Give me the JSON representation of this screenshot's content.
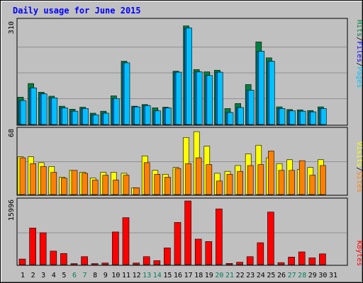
{
  "title": "Daily usage for June 2015",
  "colors": {
    "frame": "#c0c0c0",
    "panel": "#c0c0c0",
    "title": "#0000ff",
    "hits": "#008040",
    "files": "#0080ff",
    "files_label": "#0000ff",
    "pages": "#00c0ff",
    "visits": "#ffff00",
    "sites": "#ff8000",
    "kbytes": "#ff0000",
    "weekend": "#00805c",
    "weekday": "#000000",
    "grid": "#909090",
    "separator": "#000000"
  },
  "legends": {
    "top": {
      "hits": "Hits",
      "files": "Files",
      "pages": "Pages",
      "sep": "/"
    },
    "mid": {
      "visits": "Visits",
      "sites": "Sites",
      "sep": "/"
    },
    "bottom": {
      "kbytes": "KBytes"
    }
  },
  "chart_data": {
    "type": "bar",
    "title": "Daily usage for June 2015",
    "categories": [
      "1",
      "2",
      "3",
      "4",
      "5",
      "6",
      "7",
      "8",
      "9",
      "10",
      "11",
      "12",
      "13",
      "14",
      "15",
      "16",
      "17",
      "18",
      "19",
      "20",
      "21",
      "22",
      "23",
      "24",
      "25",
      "26",
      "27",
      "28",
      "29",
      "30",
      "31"
    ],
    "weekend_days": [
      6,
      7,
      13,
      14,
      20,
      21,
      27,
      28
    ],
    "panels": [
      {
        "name": "top",
        "max_label": "310",
        "ymax": 310,
        "series": [
          {
            "name": "Hits",
            "values": [
              82,
              123,
              97,
              85,
              55,
              46,
              52,
              34,
              40,
              86,
              190,
              55,
              60,
              50,
              52,
              160,
              296,
              165,
              158,
              163,
              48,
              63,
              120,
              248,
              200,
              53,
              45,
              44,
              42,
              53,
              0
            ]
          },
          {
            "name": "Files",
            "values": [
              72,
              110,
              92,
              80,
              50,
              40,
              48,
              29,
              34,
              78,
              185,
              53,
              57,
              41,
              50,
              157,
              290,
              158,
              147,
              157,
              36,
              51,
              103,
              220,
              190,
              48,
              41,
              40,
              38,
              48,
              0
            ]
          },
          {
            "name": "Pages",
            "values": [
              72,
              110,
              92,
              80,
              50,
              40,
              48,
              29,
              34,
              78,
              185,
              53,
              57,
              41,
              50,
              157,
              290,
              158,
              147,
              157,
              36,
              51,
              103,
              220,
              190,
              48,
              41,
              40,
              38,
              48,
              0
            ]
          }
        ]
      },
      {
        "name": "middle",
        "max_label": "68",
        "ymax": 68,
        "series": [
          {
            "name": "Visits",
            "values": [
              39,
              39,
              33,
              29,
              18,
              25,
              23,
              17,
              23,
              23,
              22,
              7,
              40,
              25,
              21,
              28,
              59,
              65,
              50,
              22,
              24,
              30,
              42,
              51,
              38,
              32,
              36,
              26,
              28,
              36,
              0
            ]
          },
          {
            "name": "Sites",
            "values": [
              38,
              32,
              29,
              23,
              17,
              25,
              22,
              15,
              20,
              15,
              20,
              7,
              33,
              21,
              18,
              27,
              32,
              38,
              31,
              14,
              21,
              24,
              30,
              31,
              45,
              25,
              25,
              35,
              20,
              30,
              0
            ]
          }
        ]
      },
      {
        "name": "bottom",
        "max_label": "15996",
        "ymax": 15996,
        "series": [
          {
            "name": "KBytes",
            "values": [
              1400,
              9200,
              8000,
              3400,
              2800,
              250,
              2000,
              250,
              400,
              8200,
              11800,
              400,
              2000,
              1000,
              4200,
              10600,
              15996,
              6400,
              5800,
              14000,
              300,
              600,
              2000,
              5500,
              13200,
              500,
              1900,
              3200,
              1700,
              2700,
              0
            ]
          }
        ]
      }
    ]
  }
}
